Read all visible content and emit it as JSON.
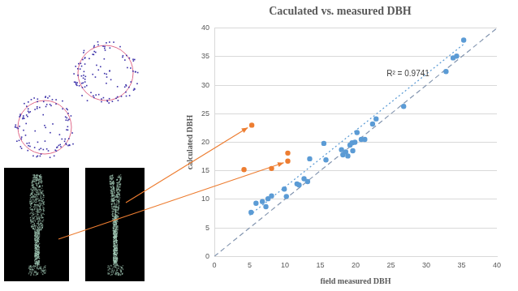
{
  "chart_data": {
    "type": "scatter",
    "title": "Caculated vs. measured DBH",
    "x_label": "field measured DBH",
    "y_label": "calculated DBH",
    "annotations": [
      {
        "text": "R² = 0.9741"
      }
    ],
    "xlim": [
      0,
      40
    ],
    "ylim": [
      0,
      40
    ],
    "xticks": [
      0,
      5,
      10,
      15,
      20,
      25,
      30,
      35,
      40
    ],
    "yticks": [
      0,
      5,
      10,
      15,
      20,
      25,
      30,
      35,
      40
    ],
    "grid": true,
    "series": [
      {
        "type": "scatter",
        "marker": "circle",
        "color": "#5b9bd5",
        "x": [
          5.2,
          5.9,
          6.8,
          7.3,
          7.6,
          8.1,
          9.9,
          10.2,
          11.7,
          12.0,
          12.7,
          13.2,
          13.5,
          15.5,
          15.8,
          18.0,
          18.2,
          18.6,
          18.9,
          19.2,
          19.5,
          19.6,
          19.9,
          20.2,
          20.8,
          21.3,
          22.4,
          22.9,
          26.8,
          32.8,
          33.8,
          34.3,
          35.3
        ],
        "values": [
          7.7,
          9.3,
          9.6,
          8.7,
          10.1,
          10.6,
          11.8,
          10.5,
          12.7,
          12.5,
          13.6,
          13.1,
          17.1,
          19.8,
          16.9,
          18.7,
          17.8,
          18.3,
          17.6,
          19.5,
          19.9,
          18.5,
          20.0,
          21.7,
          20.5,
          20.5,
          23.2,
          24.1,
          26.3,
          32.4,
          34.8,
          35.1,
          37.9
        ]
      },
      {
        "type": "scatter",
        "marker": "circle",
        "color": "#ed7d31",
        "x": [
          4.2,
          5.3,
          8.1,
          10.4,
          10.4
        ],
        "values": [
          15.2,
          23.0,
          15.4,
          18.1,
          16.7
        ]
      },
      {
        "type": "line",
        "line_style": "dotted",
        "color": "#5b9bd5",
        "x": [
          5.0,
          35.5
        ],
        "values": [
          7.2,
          37.4
        ]
      },
      {
        "type": "line",
        "line_style": "dashed",
        "color": "#8496b0",
        "x": [
          0,
          40
        ],
        "values": [
          0,
          40
        ]
      }
    ]
  }
}
